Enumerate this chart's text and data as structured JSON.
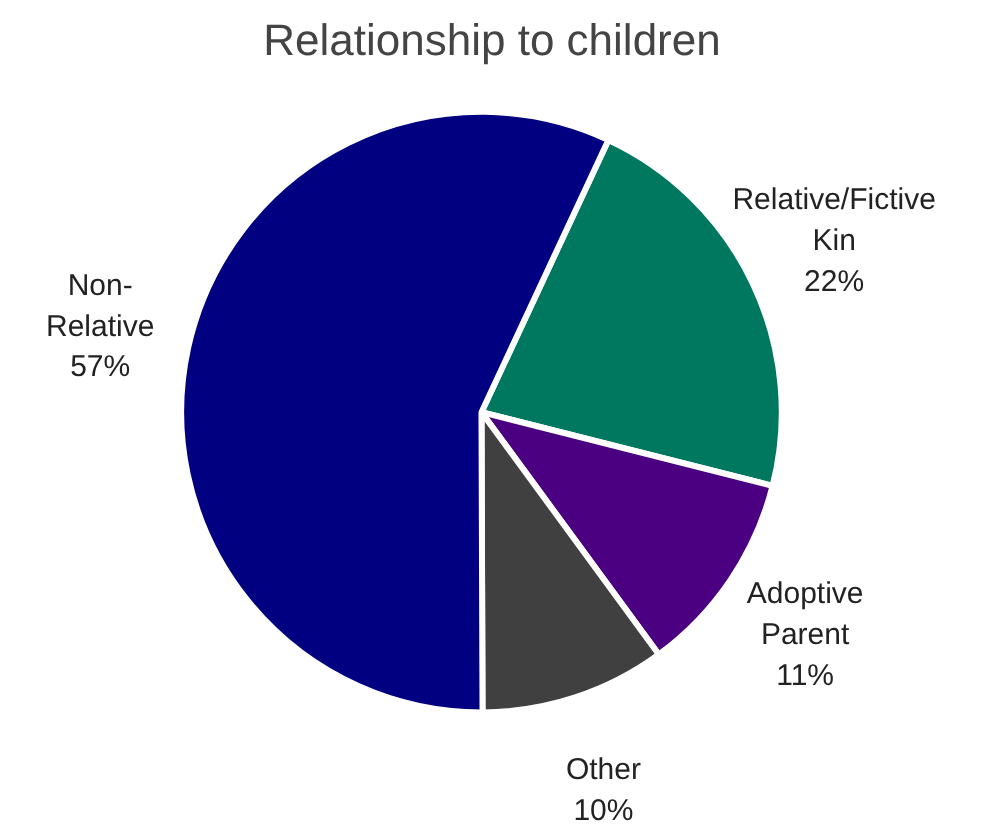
{
  "chart_data": {
    "type": "pie",
    "title": "Relationship to children",
    "categories": [
      "Relative/Fictive Kin",
      "Adoptive Parent",
      "Other",
      "Non-Relative"
    ],
    "values": [
      22,
      11,
      10,
      57
    ],
    "value_labels": [
      "22%",
      "11%",
      "10%",
      "57%"
    ],
    "colors": [
      "#00785f",
      "#4b0082",
      "#404040",
      "#000080"
    ]
  }
}
